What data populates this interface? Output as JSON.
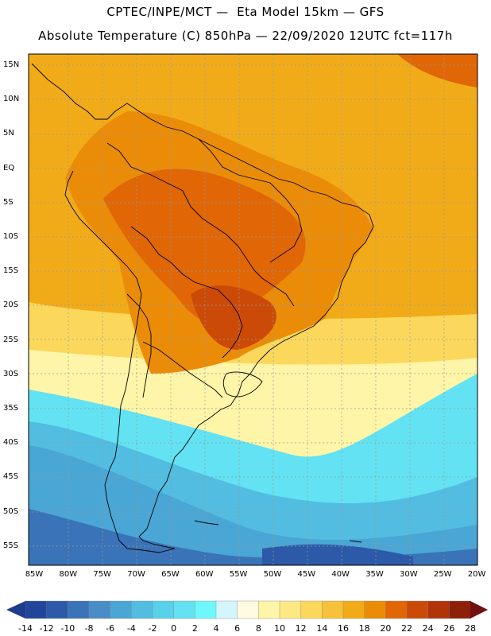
{
  "title_line1": "CPTEC/INPE/MCT —  Eta Model 15km — GFS",
  "title_line2": "Absolute Temperature (C) 850hPa — 22/09/2020 12UTC fct=117h",
  "lat_labels": [
    "15N",
    "10N",
    "5N",
    "EQ",
    "5S",
    "10S",
    "15S",
    "20S",
    "25S",
    "30S",
    "35S",
    "40S",
    "45S",
    "50S",
    "55S"
  ],
  "lon_labels": [
    "85W",
    "80W",
    "75W",
    "70W",
    "65W",
    "60W",
    "55W",
    "50W",
    "45W",
    "40W",
    "35W",
    "30W",
    "25W",
    "20W"
  ],
  "colorbar": {
    "labels": [
      "-14",
      "-12",
      "-10",
      "-8",
      "-6",
      "-4",
      "-2",
      "0",
      "2",
      "4",
      "6",
      "8",
      "10",
      "12",
      "14",
      "16",
      "18",
      "20",
      "22",
      "24",
      "26",
      "28"
    ],
    "colors": [
      "#22449a",
      "#2c5aa8",
      "#3a73b8",
      "#4a8cc6",
      "#4aa6d4",
      "#52bde0",
      "#58d1ea",
      "#62e2f2",
      "#6ff8fc",
      "#d2f6fc",
      "#fffae0",
      "#fff5a8",
      "#fde884",
      "#fbd85c",
      "#f7c13a",
      "#f2ab18",
      "#eb8c08",
      "#e06606",
      "#cc4a08",
      "#b03408",
      "#8c2008"
    ],
    "under_color": "#1e3c8c",
    "over_color": "#701010"
  },
  "legend": {
    "ocean_tropical": "#f2ab18",
    "land_warm": "#eb8c08",
    "land_hot": "#e06606",
    "land_hottest": "#cc4a08",
    "subtropical": "#fbd85c",
    "cool": "#fff5a8",
    "cold_1": "#62e2f2",
    "cold_2": "#52bde0",
    "cold_3": "#4aa6d4",
    "cold_4": "#3a73b8",
    "cold_5": "#2c5aa8"
  }
}
